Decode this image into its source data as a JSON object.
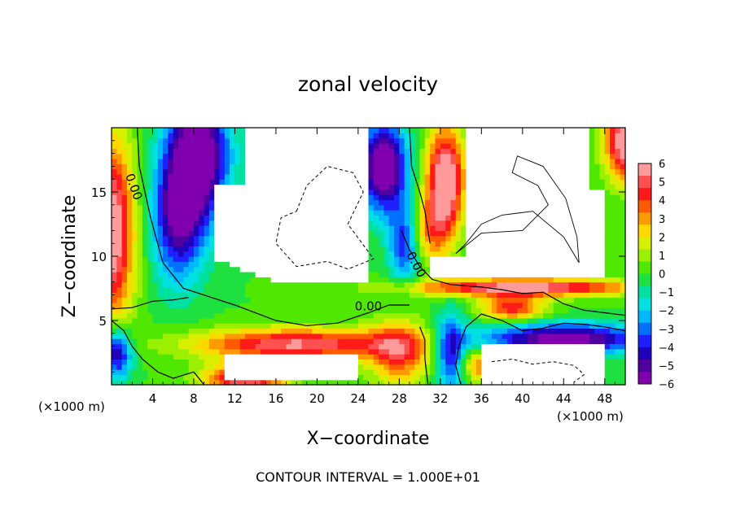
{
  "chart_data": {
    "type": "heatmap",
    "title": "zonal velocity",
    "xlabel": "X−coordinate",
    "ylabel": "Z−coordinate",
    "x_unit_left": "(×1000 m)",
    "x_unit_right": "(×1000 m)",
    "footer": "CONTOUR INTERVAL = 1.000E+01",
    "xlim": [
      0,
      50
    ],
    "ylim": [
      0,
      20
    ],
    "x_ticks": [
      {
        "value": 4,
        "label": "4"
      },
      {
        "value": 8,
        "label": "8"
      },
      {
        "value": 12,
        "label": "12"
      },
      {
        "value": 16,
        "label": "16"
      },
      {
        "value": 20,
        "label": "20"
      },
      {
        "value": 24,
        "label": "24"
      },
      {
        "value": 28,
        "label": "28"
      },
      {
        "value": 32,
        "label": "32"
      },
      {
        "value": 36,
        "label": "36"
      },
      {
        "value": 40,
        "label": "40"
      },
      {
        "value": 44,
        "label": "44"
      },
      {
        "value": 48,
        "label": "48"
      }
    ],
    "y_ticks": [
      {
        "value": 5,
        "label": "5"
      },
      {
        "value": 10,
        "label": "10"
      },
      {
        "value": 15,
        "label": "15"
      }
    ],
    "colorbar": {
      "range": [
        -6,
        6
      ],
      "labels": [
        "6",
        "5",
        "4",
        "3",
        "2",
        "1",
        "0",
        "−1",
        "−2",
        "−3",
        "−4",
        "−5",
        "−6"
      ],
      "colors": [
        "#ff9a9a",
        "#ff5050",
        "#ff1a1a",
        "#ff5a00",
        "#ff9a00",
        "#ffd800",
        "#d8f000",
        "#9af000",
        "#50e800",
        "#1ee040",
        "#00e0a0",
        "#00e0e0",
        "#00b8ff",
        "#0070ff",
        "#1e20ff",
        "#2000b8",
        "#5000a0",
        "#8000b0"
      ]
    },
    "contour_labels": [
      {
        "text": "0.00",
        "x": 1.8,
        "y": 15.3,
        "rotate": 70
      },
      {
        "text": "0.00",
        "x": 29.3,
        "y": 9.2,
        "rotate": 62
      },
      {
        "text": "0.00",
        "x": 25.0,
        "y": 5.8,
        "rotate": 0
      }
    ],
    "velocity_field": {
      "description_hint": "value in color-scale units at (x, z)",
      "lines_zero": [
        [
          [
            2.5,
            20
          ],
          [
            2.7,
            17
          ],
          [
            3.8,
            13
          ],
          [
            5.0,
            9.5
          ],
          [
            7.0,
            7.5
          ],
          [
            12,
            6.2
          ],
          [
            16,
            5.0
          ],
          [
            19,
            4.6
          ],
          [
            22,
            4.8
          ],
          [
            25,
            5.6
          ],
          [
            27,
            6.2
          ],
          [
            29,
            6.2
          ]
        ],
        [
          [
            0,
            5.9
          ],
          [
            2,
            6.0
          ],
          [
            4,
            6.5
          ],
          [
            6,
            6.6
          ],
          [
            7.5,
            6.8
          ]
        ],
        [
          [
            28.2,
            12
          ],
          [
            29,
            10.5
          ],
          [
            30,
            9.2
          ],
          [
            31.2,
            8.2
          ],
          [
            33,
            7.8
          ],
          [
            36,
            7.6
          ],
          [
            38,
            7.4
          ],
          [
            40,
            7.1
          ],
          [
            42,
            7.2
          ],
          [
            44,
            6.3
          ],
          [
            46,
            5.8
          ],
          [
            48,
            5.6
          ],
          [
            50,
            5.4
          ]
        ],
        [
          [
            30,
            4.5
          ],
          [
            30.5,
            3.5
          ],
          [
            30.5,
            2.0
          ],
          [
            30.8,
            0
          ]
        ],
        [
          [
            34,
            0
          ],
          [
            33.5,
            1.5
          ],
          [
            33.8,
            3
          ],
          [
            34.5,
            4.5
          ],
          [
            36,
            5.5
          ],
          [
            38,
            5.0
          ],
          [
            40,
            4.2
          ],
          [
            42,
            4.4
          ],
          [
            44,
            4.8
          ],
          [
            46,
            4.7
          ],
          [
            48,
            4.5
          ],
          [
            50,
            4.2
          ]
        ],
        [
          [
            29,
            20
          ],
          [
            29.2,
            17
          ],
          [
            30,
            15
          ],
          [
            30.5,
            13.5
          ],
          [
            31,
            11
          ]
        ],
        [
          [
            0,
            5.0
          ],
          [
            1.2,
            4.2
          ],
          [
            2,
            3
          ],
          [
            3,
            2
          ],
          [
            4.5,
            1.0
          ],
          [
            6,
            0.5
          ],
          [
            8,
            1.0
          ],
          [
            9,
            0
          ]
        ]
      ]
    }
  }
}
